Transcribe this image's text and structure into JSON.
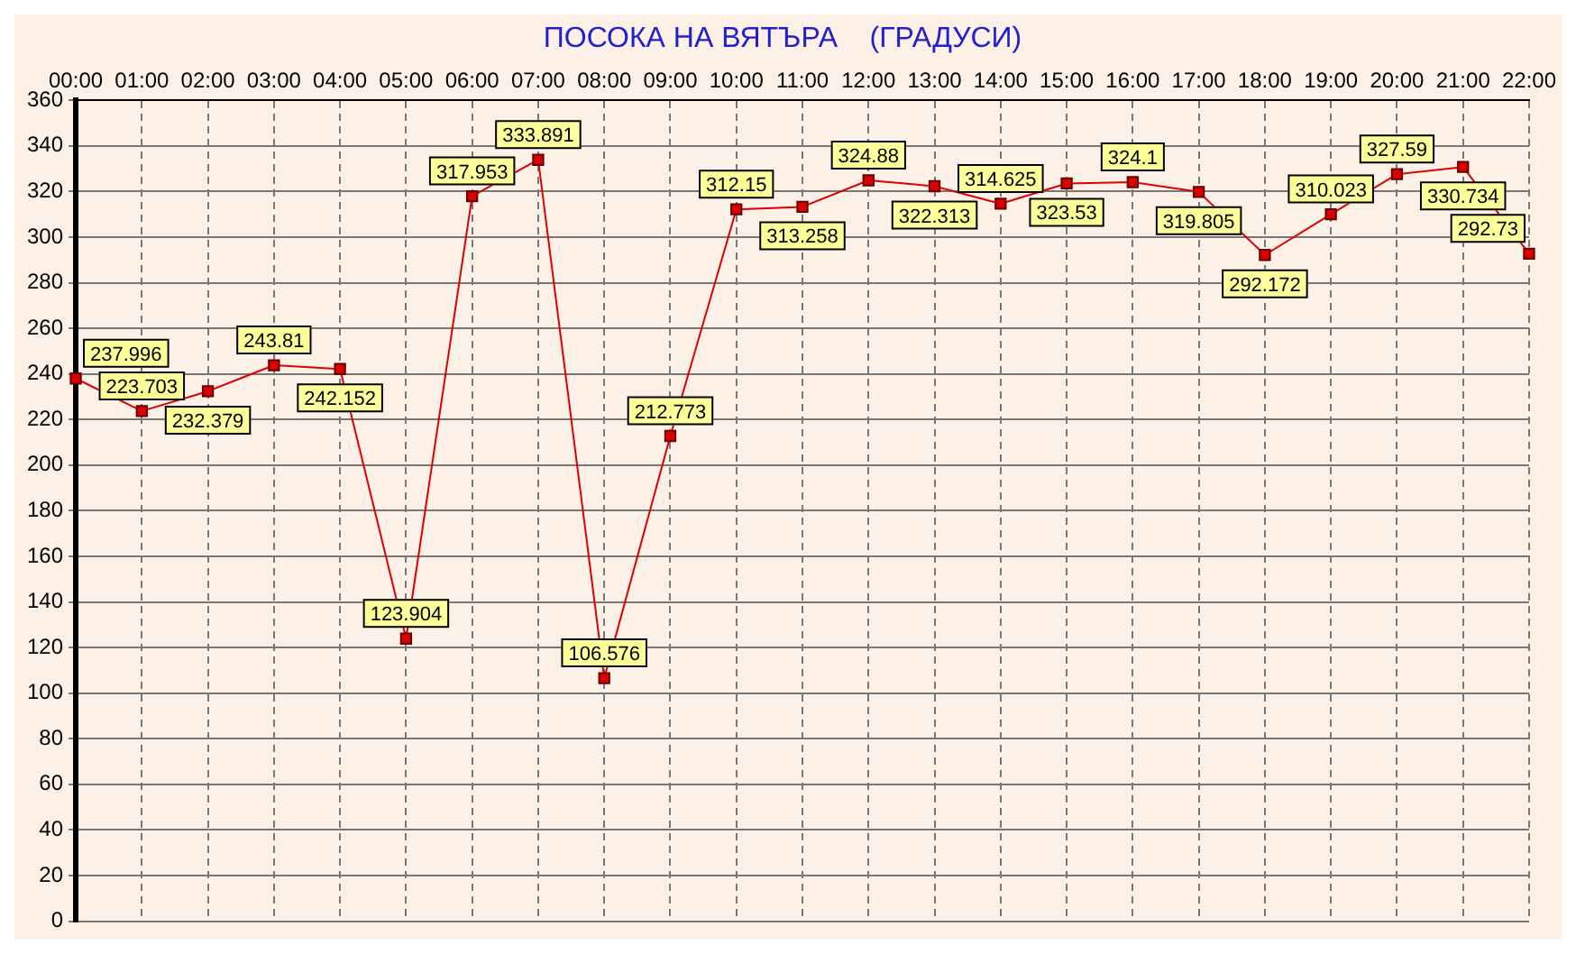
{
  "chart_data": {
    "type": "line",
    "title": "ПОСОКА НА ВЯТЪРА    (ГРАДУСИ)",
    "categories": [
      "00:00",
      "01:00",
      "02:00",
      "03:00",
      "04:00",
      "05:00",
      "06:00",
      "07:00",
      "08:00",
      "09:00",
      "10:00",
      "11:00",
      "12:00",
      "13:00",
      "14:00",
      "15:00",
      "16:00",
      "17:00",
      "18:00",
      "19:00",
      "20:00",
      "21:00",
      "22:00"
    ],
    "series": [
      {
        "color": "#dd0000",
        "values": [
          237.996,
          223.703,
          232.379,
          243.81,
          242.152,
          123.904,
          317.953,
          333.891,
          106.576,
          212.773,
          312.15,
          313.258,
          324.88,
          322.313,
          314.625,
          323.53,
          324.1,
          319.805,
          292.172,
          310.023,
          327.59,
          330.734,
          292.73
        ]
      }
    ],
    "ylim": [
      0,
      360
    ],
    "yticks": [
      0,
      20,
      40,
      60,
      80,
      100,
      120,
      140,
      160,
      180,
      200,
      220,
      240,
      260,
      280,
      300,
      320,
      340,
      360
    ],
    "grid": true,
    "marker": "square",
    "line_style": "solid",
    "data_labels": true,
    "legend": false
  }
}
